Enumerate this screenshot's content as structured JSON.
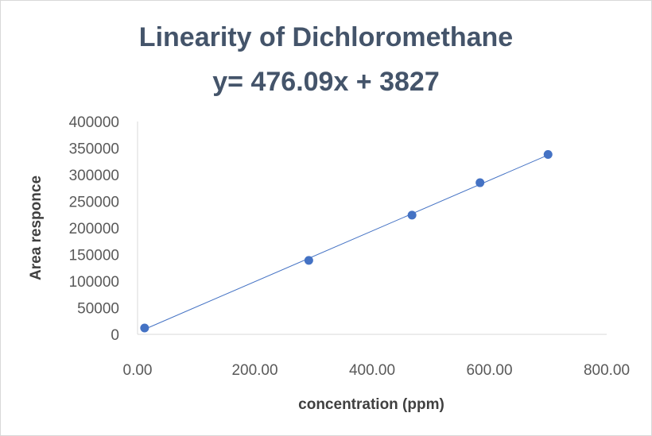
{
  "chart_data": {
    "type": "scatter",
    "title": "Linearity of Dichloromethane",
    "subtitle": "y= 476.09x + 3827",
    "xlabel": "concentration (ppm)",
    "ylabel": "Area responce",
    "xlim": [
      0,
      800
    ],
    "ylim": [
      0,
      400000
    ],
    "x_ticks": [
      "0.00",
      "200.00",
      "400.00",
      "600.00",
      "800.00"
    ],
    "y_ticks": [
      "0",
      "50000",
      "100000",
      "150000",
      "200000",
      "250000",
      "300000",
      "350000",
      "400000"
    ],
    "x_tick_values": [
      0,
      200,
      400,
      600,
      800
    ],
    "y_tick_values": [
      0,
      50000,
      100000,
      150000,
      200000,
      250000,
      300000,
      350000,
      400000
    ],
    "series": [
      {
        "x": [
          12,
          292,
          468,
          584,
          700
        ],
        "y": [
          12000,
          139000,
          224000,
          285000,
          338000
        ],
        "color": "#4472c4"
      }
    ],
    "trendline": {
      "slope": 476.09,
      "intercept": 3827,
      "color": "#4472c4"
    },
    "grid": false,
    "legend": "none"
  }
}
